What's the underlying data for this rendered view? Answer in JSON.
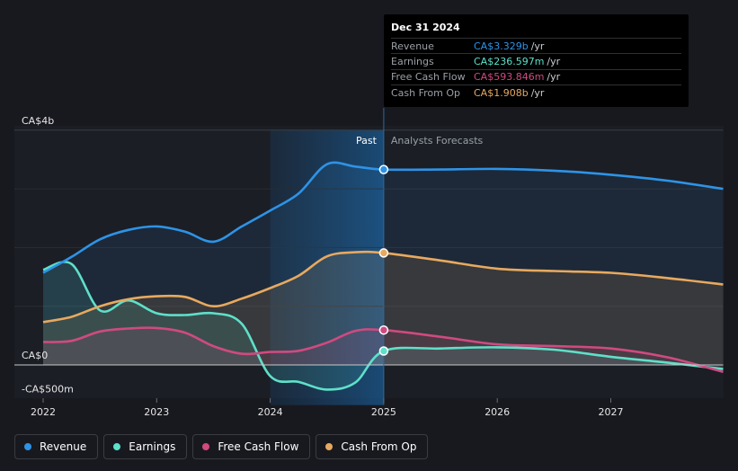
{
  "chart_data": {
    "type": "line",
    "y_unit": "CA$",
    "ylim": [
      -0.5,
      4.0
    ],
    "y_ticks": [
      {
        "value": 4.0,
        "label": "CA$4b"
      },
      {
        "value": 0.0,
        "label": "CA$0"
      },
      {
        "value": -0.5,
        "label": "-CA$500m"
      }
    ],
    "x_ticks": [
      "2022",
      "2023",
      "2024",
      "2025",
      "2026",
      "2027"
    ],
    "x_range": [
      2021.8,
      2027.99
    ],
    "divider_x": 2025.0,
    "past_label": "Past",
    "forecast_label": "Analysts Forecasts",
    "series": [
      {
        "name": "Revenue",
        "color": "#2e93e6",
        "z": 4,
        "points": [
          [
            2022.0,
            1.57
          ],
          [
            2022.25,
            1.84
          ],
          [
            2022.5,
            2.14
          ],
          [
            2022.75,
            2.3
          ],
          [
            2023.0,
            2.36
          ],
          [
            2023.25,
            2.27
          ],
          [
            2023.5,
            2.1
          ],
          [
            2023.75,
            2.36
          ],
          [
            2024.0,
            2.63
          ],
          [
            2024.25,
            2.92
          ],
          [
            2024.5,
            3.42
          ],
          [
            2024.75,
            3.38
          ],
          [
            2025.0,
            3.329
          ],
          [
            2025.5,
            3.33
          ],
          [
            2026.0,
            3.34
          ],
          [
            2026.5,
            3.31
          ],
          [
            2027.0,
            3.24
          ],
          [
            2027.5,
            3.14
          ],
          [
            2027.99,
            3.0
          ]
        ]
      },
      {
        "name": "Cash From Op",
        "color": "#e8a95f",
        "z": 3,
        "points": [
          [
            2022.0,
            0.73
          ],
          [
            2022.25,
            0.82
          ],
          [
            2022.5,
            1.0
          ],
          [
            2022.75,
            1.12
          ],
          [
            2023.0,
            1.17
          ],
          [
            2023.25,
            1.16
          ],
          [
            2023.5,
            1.0
          ],
          [
            2023.75,
            1.13
          ],
          [
            2024.0,
            1.31
          ],
          [
            2024.25,
            1.52
          ],
          [
            2024.5,
            1.85
          ],
          [
            2024.75,
            1.92
          ],
          [
            2025.0,
            1.908
          ],
          [
            2025.5,
            1.78
          ],
          [
            2026.0,
            1.64
          ],
          [
            2026.5,
            1.6
          ],
          [
            2027.0,
            1.57
          ],
          [
            2027.5,
            1.48
          ],
          [
            2027.99,
            1.37
          ]
        ]
      },
      {
        "name": "Free Cash Flow",
        "color": "#d04a80",
        "z": 2,
        "points": [
          [
            2022.0,
            0.39
          ],
          [
            2022.25,
            0.41
          ],
          [
            2022.5,
            0.57
          ],
          [
            2022.75,
            0.62
          ],
          [
            2023.0,
            0.63
          ],
          [
            2023.25,
            0.55
          ],
          [
            2023.5,
            0.32
          ],
          [
            2023.75,
            0.19
          ],
          [
            2024.0,
            0.22
          ],
          [
            2024.25,
            0.24
          ],
          [
            2024.5,
            0.38
          ],
          [
            2024.75,
            0.58
          ],
          [
            2025.0,
            0.594
          ],
          [
            2025.5,
            0.48
          ],
          [
            2026.0,
            0.35
          ],
          [
            2026.5,
            0.32
          ],
          [
            2027.0,
            0.28
          ],
          [
            2027.5,
            0.13
          ],
          [
            2027.99,
            -0.12
          ]
        ]
      },
      {
        "name": "Earnings",
        "color": "#5ee0c9",
        "z": 1,
        "points": [
          [
            2022.0,
            1.62
          ],
          [
            2022.25,
            1.72
          ],
          [
            2022.5,
            0.93
          ],
          [
            2022.75,
            1.1
          ],
          [
            2023.0,
            0.88
          ],
          [
            2023.25,
            0.85
          ],
          [
            2023.5,
            0.88
          ],
          [
            2023.75,
            0.7
          ],
          [
            2024.0,
            -0.19
          ],
          [
            2024.25,
            -0.29
          ],
          [
            2024.5,
            -0.42
          ],
          [
            2024.75,
            -0.3
          ],
          [
            2025.0,
            0.237
          ],
          [
            2025.5,
            0.28
          ],
          [
            2026.0,
            0.3
          ],
          [
            2026.5,
            0.26
          ],
          [
            2027.0,
            0.14
          ],
          [
            2027.5,
            0.04
          ],
          [
            2027.99,
            -0.07
          ]
        ]
      }
    ]
  },
  "tooltip": {
    "date": "Dec 31 2024",
    "rows": [
      {
        "name": "Revenue",
        "value": "CA$3.329b",
        "unit": "/yr",
        "color": "#2e93e6"
      },
      {
        "name": "Earnings",
        "value": "CA$236.597m",
        "unit": "/yr",
        "color": "#5ee0c9"
      },
      {
        "name": "Free Cash Flow",
        "value": "CA$593.846m",
        "unit": "/yr",
        "color": "#d04a80"
      },
      {
        "name": "Cash From Op",
        "value": "CA$1.908b",
        "unit": "/yr",
        "color": "#e8a95f"
      }
    ]
  },
  "legend": [
    {
      "label": "Revenue",
      "color": "#2e93e6"
    },
    {
      "label": "Earnings",
      "color": "#5ee0c9"
    },
    {
      "label": "Free Cash Flow",
      "color": "#d04a80"
    },
    {
      "label": "Cash From Op",
      "color": "#e8a95f"
    }
  ]
}
